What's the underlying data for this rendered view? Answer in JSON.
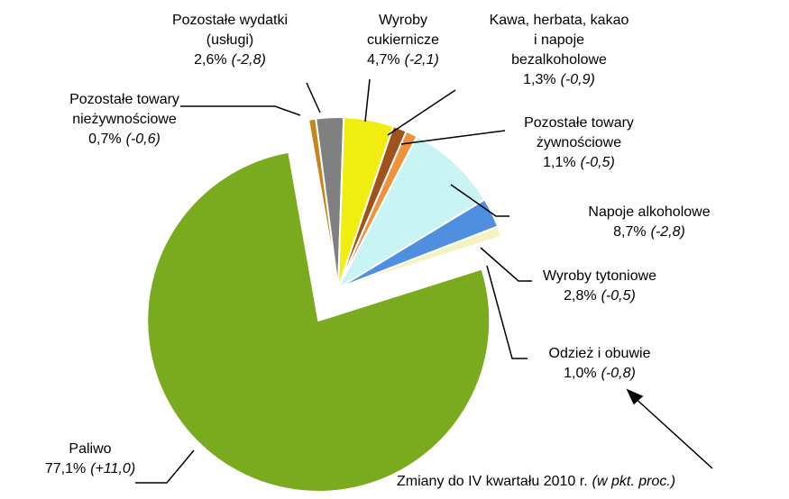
{
  "chart_data": {
    "type": "pie",
    "categories": [
      "Pozostałe towary nieżywnościowe",
      "Pozostałe wydatki (usługi)",
      "Wyroby cukiernicze",
      "Kawa, herbata, kakao i napoje bezalkoholowe",
      "Pozostałe towary żywnościowe",
      "Napoje alkoholowe",
      "Wyroby tytoniowe",
      "Odzież i obuwie",
      "Paliwo"
    ],
    "values": [
      0.7,
      2.6,
      4.7,
      1.3,
      1.1,
      8.7,
      2.8,
      1.0,
      77.1
    ],
    "value_labels": [
      "0,7%",
      "2,6%",
      "4,7%",
      "1,3%",
      "1,1%",
      "8,7%",
      "2,8%",
      "1,0%",
      "77,1%"
    ],
    "change_labels": [
      "(-0,6)",
      "(-2,8)",
      "(-2,1)",
      "(-0,9)",
      "(-0,5)",
      "(-2,8)",
      "(-0,5)",
      "(-0,8)",
      "(+11,0)"
    ],
    "colors": [
      "#c8861a",
      "#808080",
      "#f0ee10",
      "#a0521d",
      "#f0913c",
      "#c8f4f4",
      "#4f8fe0",
      "#f4f2c0",
      "#7aaa1e"
    ],
    "annotation": {
      "text": "Zmiany do IV kwartału 2010 r.",
      "unit": "(w pkt. proc.)"
    }
  }
}
